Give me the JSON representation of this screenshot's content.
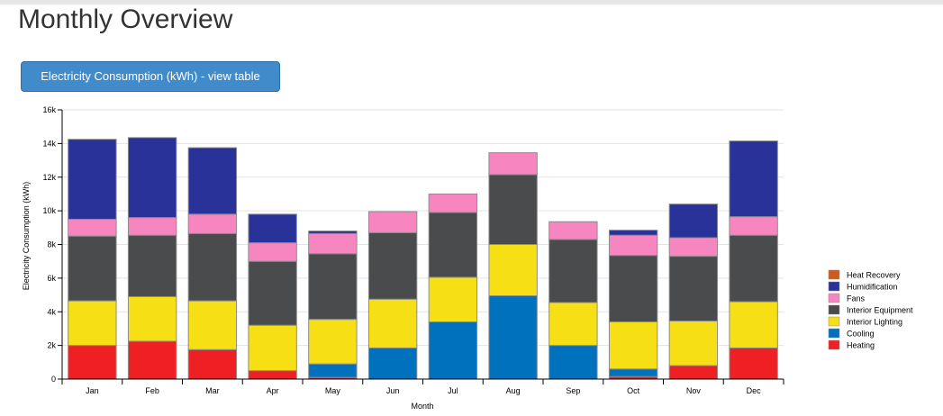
{
  "page": {
    "title": "Monthly Overview"
  },
  "toolbar": {
    "view_table_label": "Electricity Consumption (kWh) - view table"
  },
  "chart_data": {
    "type": "bar",
    "stacked": true,
    "title": "",
    "xlabel": "Month",
    "ylabel": "Electricity Consumption (kWh)",
    "ylim": [
      0,
      16000
    ],
    "yticks": [
      0,
      2000,
      4000,
      6000,
      8000,
      10000,
      12000,
      14000,
      16000
    ],
    "ytick_labels": [
      "0",
      "2k",
      "4k",
      "6k",
      "8k",
      "10k",
      "12k",
      "14k",
      "16k"
    ],
    "grid": true,
    "legend_position": "right",
    "categories": [
      "Jan",
      "Feb",
      "Mar",
      "Apr",
      "May",
      "Jun",
      "Jul",
      "Aug",
      "Sep",
      "Oct",
      "Nov",
      "Dec"
    ],
    "series": [
      {
        "name": "Heating",
        "color": "#ee2024",
        "values": [
          2000,
          2250,
          1750,
          500,
          100,
          0,
          0,
          0,
          0,
          150,
          800,
          1850
        ]
      },
      {
        "name": "Cooling",
        "color": "#0071bd",
        "values": [
          0,
          0,
          0,
          0,
          800,
          1850,
          3400,
          4950,
          2000,
          450,
          0,
          0
        ]
      },
      {
        "name": "Interior Lighting",
        "color": "#f7df15",
        "values": [
          2650,
          2650,
          2900,
          2700,
          2650,
          2900,
          2650,
          3050,
          2550,
          2800,
          2650,
          2750
        ]
      },
      {
        "name": "Interior Equipment",
        "color": "#4a4b4c",
        "values": [
          3850,
          3650,
          4000,
          3800,
          3900,
          3950,
          3850,
          4150,
          3750,
          3950,
          3850,
          3950
        ]
      },
      {
        "name": "Fans",
        "color": "#f786c0",
        "values": [
          1000,
          1050,
          1150,
          1100,
          1200,
          1250,
          1100,
          1300,
          1050,
          1200,
          1100,
          1100
        ]
      },
      {
        "name": "Humidification",
        "color": "#293299",
        "values": [
          4750,
          4750,
          3950,
          1700,
          150,
          0,
          0,
          0,
          0,
          300,
          2000,
          4500
        ]
      },
      {
        "name": "Heat Recovery",
        "color": "#ce5921",
        "values": [
          0,
          0,
          0,
          0,
          0,
          0,
          0,
          0,
          0,
          0,
          0,
          0
        ]
      }
    ],
    "legend_order": [
      "Heat Recovery",
      "Humidification",
      "Fans",
      "Interior Equipment",
      "Interior Lighting",
      "Cooling",
      "Heating"
    ]
  }
}
